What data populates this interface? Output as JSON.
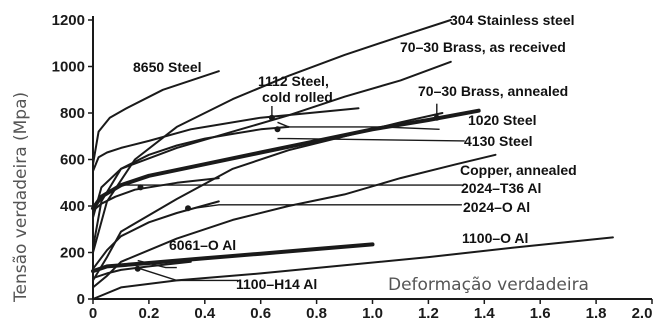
{
  "chart_data": {
    "type": "line",
    "xlabel": "Deformação verdadeira",
    "ylabel": "Tensão verdadeira (Mpa)",
    "xlim": [
      0,
      2.0
    ],
    "ylim": [
      0,
      1200
    ],
    "x_ticks": [
      "0",
      "0.2",
      "0.4",
      "0.6",
      "0.8",
      "1.0",
      "1.2",
      "1.4",
      "1.6",
      "1.8",
      "2.0"
    ],
    "y_ticks": [
      "0",
      "200",
      "400",
      "600",
      "800",
      "1000",
      "1200"
    ],
    "grid": false,
    "series": [
      {
        "name": "304 Stainless steel",
        "x": [
          0,
          0.05,
          0.15,
          0.3,
          0.5,
          0.7,
          0.9,
          1.1,
          1.28
        ],
        "y": [
          200,
          420,
          600,
          740,
          860,
          960,
          1050,
          1130,
          1200
        ]
      },
      {
        "name": "70–30 Brass, as received",
        "x": [
          0,
          0.03,
          0.1,
          0.3,
          0.5,
          0.7,
          0.9,
          1.1,
          1.28
        ],
        "y": [
          220,
          420,
          560,
          650,
          720,
          790,
          870,
          940,
          1020
        ]
      },
      {
        "name": "8650 Steel",
        "x": [
          0,
          0.02,
          0.06,
          0.12,
          0.25,
          0.45
        ],
        "y": [
          580,
          720,
          780,
          820,
          900,
          980
        ]
      },
      {
        "name": "1112 Steel, cold rolled",
        "x": [
          0,
          0.02,
          0.05,
          0.1,
          0.2,
          0.35,
          0.6,
          0.95
        ],
        "y": [
          550,
          610,
          630,
          650,
          680,
          730,
          780,
          820
        ]
      },
      {
        "name": "70–30 Brass, annealed",
        "x": [
          0,
          0.05,
          0.1,
          0.3,
          0.5,
          0.7,
          0.9,
          1.1,
          1.25
        ],
        "y": [
          80,
          180,
          290,
          430,
          560,
          640,
          700,
          760,
          800
        ]
      },
      {
        "name": "1020 Steel",
        "x": [
          0,
          0.03,
          0.1,
          0.2,
          0.4,
          0.6,
          0.8,
          1.0,
          1.2,
          1.38
        ],
        "y": [
          390,
          440,
          490,
          530,
          580,
          630,
          680,
          730,
          770,
          810
        ]
      },
      {
        "name": "4130 Steel",
        "x": [
          0,
          0.03,
          0.1,
          0.2,
          0.3,
          0.4,
          0.5,
          0.6,
          0.7
        ],
        "y": [
          350,
          480,
          560,
          620,
          660,
          690,
          710,
          730,
          740
        ]
      },
      {
        "name": "Copper, annealed",
        "x": [
          0,
          0.05,
          0.1,
          0.3,
          0.5,
          0.7,
          0.9,
          1.1,
          1.3,
          1.44
        ],
        "y": [
          50,
          100,
          160,
          260,
          340,
          400,
          450,
          520,
          580,
          620
        ]
      },
      {
        "name": "2024–T36 Al",
        "x": [
          0,
          0.03,
          0.08,
          0.15,
          0.3,
          0.45
        ],
        "y": [
          380,
          410,
          440,
          470,
          500,
          520
        ]
      },
      {
        "name": "2024–O Al",
        "x": [
          0,
          0.05,
          0.1,
          0.2,
          0.3,
          0.45
        ],
        "y": [
          130,
          210,
          270,
          330,
          370,
          420
        ]
      },
      {
        "name": "6061–O Al",
        "x": [
          0,
          0.05,
          0.1,
          0.2,
          0.35
        ],
        "y": [
          90,
          110,
          125,
          140,
          160
        ]
      },
      {
        "name": "1100–O Al",
        "x": [
          0,
          0.1,
          0.3,
          0.6,
          0.9,
          1.2,
          1.5,
          1.86
        ],
        "y": [
          0,
          50,
          80,
          110,
          145,
          180,
          220,
          265
        ]
      },
      {
        "name": "1100–H14 Al",
        "x": [
          0,
          0.05,
          0.2,
          0.4,
          0.6,
          0.8,
          1.0
        ],
        "y": [
          120,
          140,
          155,
          175,
          195,
          215,
          235
        ]
      }
    ],
    "annotations": [
      "304 Stainless steel",
      "70–30 Brass, as received",
      "8650 Steel",
      "1112 Steel,",
      "cold rolled",
      "70–30 Brass, annealed",
      "1020 Steel",
      "4130 Steel",
      "Copper, annealed",
      "2024–T36 Al",
      "2024–O Al",
      "6061–O Al",
      "1100–O Al",
      "1100–H14 Al"
    ]
  }
}
